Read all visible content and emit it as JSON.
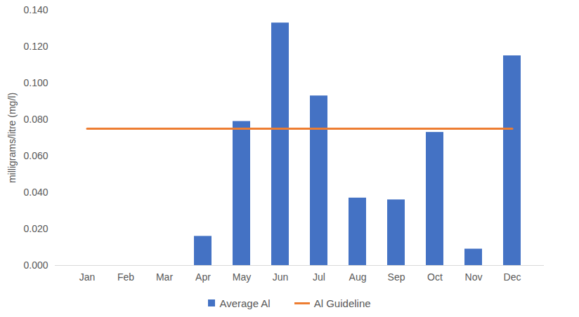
{
  "chart_data": {
    "type": "bar",
    "y_label": "milligrams/litre (mg/l)",
    "categories": [
      "Jan",
      "Feb",
      "Mar",
      "Apr",
      "May",
      "Jun",
      "Jul",
      "Aug",
      "Sep",
      "Oct",
      "Nov",
      "Dec"
    ],
    "series": [
      {
        "name": "Average Al",
        "type": "bar",
        "color": "#4472c4",
        "values": [
          null,
          null,
          null,
          0.016,
          0.079,
          0.133,
          0.093,
          0.037,
          0.036,
          0.073,
          0.009,
          0.115
        ]
      },
      {
        "name": "Al Guideline",
        "type": "line",
        "color": "#ed7d31",
        "values": [
          0.075,
          0.075,
          0.075,
          0.075,
          0.075,
          0.075,
          0.075,
          0.075,
          0.075,
          0.075,
          0.075,
          0.075
        ]
      }
    ],
    "ylim": [
      0,
      0.14
    ],
    "yticks": [
      {
        "value": 0,
        "label": "0.000"
      },
      {
        "value": 0.02,
        "label": "0.020"
      },
      {
        "value": 0.04,
        "label": "0.040"
      },
      {
        "value": 0.06,
        "label": "0.060"
      },
      {
        "value": 0.08,
        "label": "0.080"
      },
      {
        "value": 0.1,
        "label": "0.100"
      },
      {
        "value": 0.12,
        "label": "0.120"
      },
      {
        "value": 0.14,
        "label": "0.140"
      }
    ],
    "grid": false,
    "legend": "bottom"
  }
}
